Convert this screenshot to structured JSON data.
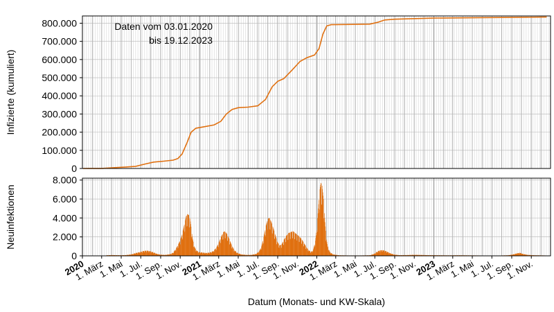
{
  "chart_data": {
    "type": "line",
    "xlabel": "Datum (Monats- und KW-Skala)",
    "annotation": [
      "Daten vom 03.01.2020",
      "bis 19.12.2023"
    ],
    "x_range": [
      "2020-01-01",
      "2023-12-31"
    ],
    "grid": true,
    "x_ticks": [
      {
        "date": "2020-01-01",
        "label": "2020",
        "bold": true
      },
      {
        "date": "2020-03-01",
        "label": "1. März"
      },
      {
        "date": "2020-05-01",
        "label": "1. Mai"
      },
      {
        "date": "2020-07-01",
        "label": "1. Jul."
      },
      {
        "date": "2020-09-01",
        "label": "1. Sep."
      },
      {
        "date": "2020-11-01",
        "label": "1. Nov."
      },
      {
        "date": "2021-01-01",
        "label": "2021",
        "bold": true
      },
      {
        "date": "2021-03-01",
        "label": "1. März"
      },
      {
        "date": "2021-05-01",
        "label": "1. Mai"
      },
      {
        "date": "2021-07-01",
        "label": "1. Jul."
      },
      {
        "date": "2021-09-01",
        "label": "1. Sep."
      },
      {
        "date": "2021-11-01",
        "label": "1. Nov."
      },
      {
        "date": "2022-01-01",
        "label": "2022",
        "bold": true
      },
      {
        "date": "2022-03-01",
        "label": "1. März"
      },
      {
        "date": "2022-05-01",
        "label": "1. Mai"
      },
      {
        "date": "2022-07-01",
        "label": "1. Jul."
      },
      {
        "date": "2022-09-01",
        "label": "1. Sep."
      },
      {
        "date": "2022-11-01",
        "label": "1. Nov."
      },
      {
        "date": "2023-01-01",
        "label": "2023",
        "bold": true
      },
      {
        "date": "2023-03-01",
        "label": "1. März"
      },
      {
        "date": "2023-05-01",
        "label": "1. Mai"
      },
      {
        "date": "2023-07-01",
        "label": "1. Jul."
      },
      {
        "date": "2023-09-01",
        "label": "1. Sep."
      },
      {
        "date": "2023-11-01",
        "label": "1. Nov."
      }
    ],
    "panels": [
      {
        "name": "cumulative",
        "type": "line",
        "ylabel": "Infizierte (kumuliert)",
        "ylim": [
          0,
          840000
        ],
        "yticks": [
          0,
          100000,
          200000,
          300000,
          400000,
          500000,
          600000,
          700000,
          800000
        ],
        "ytick_labels": [
          "0",
          "100.000",
          "200.000",
          "300.000",
          "400.000",
          "500.000",
          "600.000",
          "700.000",
          "800.000"
        ],
        "color": "#E07010",
        "points": [
          {
            "x": "2020-01-03",
            "y": 0
          },
          {
            "x": "2020-03-01",
            "y": 500
          },
          {
            "x": "2020-04-15",
            "y": 5000
          },
          {
            "x": "2020-05-15",
            "y": 8000
          },
          {
            "x": "2020-06-15",
            "y": 12000
          },
          {
            "x": "2020-07-15",
            "y": 25000
          },
          {
            "x": "2020-08-10",
            "y": 35000
          },
          {
            "x": "2020-09-10",
            "y": 40000
          },
          {
            "x": "2020-10-10",
            "y": 46000
          },
          {
            "x": "2020-10-25",
            "y": 55000
          },
          {
            "x": "2020-11-07",
            "y": 80000
          },
          {
            "x": "2020-11-22",
            "y": 140000
          },
          {
            "x": "2020-12-05",
            "y": 200000
          },
          {
            "x": "2020-12-20",
            "y": 222000
          },
          {
            "x": "2021-01-15",
            "y": 230000
          },
          {
            "x": "2021-02-15",
            "y": 240000
          },
          {
            "x": "2021-03-08",
            "y": 260000
          },
          {
            "x": "2021-03-25",
            "y": 300000
          },
          {
            "x": "2021-04-12",
            "y": 325000
          },
          {
            "x": "2021-05-01",
            "y": 335000
          },
          {
            "x": "2021-06-01",
            "y": 338000
          },
          {
            "x": "2021-07-01",
            "y": 345000
          },
          {
            "x": "2021-07-25",
            "y": 380000
          },
          {
            "x": "2021-08-15",
            "y": 450000
          },
          {
            "x": "2021-09-01",
            "y": 480000
          },
          {
            "x": "2021-09-20",
            "y": 495000
          },
          {
            "x": "2021-10-15",
            "y": 540000
          },
          {
            "x": "2021-11-10",
            "y": 590000
          },
          {
            "x": "2021-12-01",
            "y": 610000
          },
          {
            "x": "2021-12-25",
            "y": 625000
          },
          {
            "x": "2022-01-08",
            "y": 660000
          },
          {
            "x": "2022-01-20",
            "y": 740000
          },
          {
            "x": "2022-02-01",
            "y": 785000
          },
          {
            "x": "2022-02-15",
            "y": 792000
          },
          {
            "x": "2022-04-01",
            "y": 793000
          },
          {
            "x": "2022-06-15",
            "y": 795000
          },
          {
            "x": "2022-07-10",
            "y": 805000
          },
          {
            "x": "2022-08-01",
            "y": 818000
          },
          {
            "x": "2022-09-01",
            "y": 822000
          },
          {
            "x": "2023-01-01",
            "y": 828000
          },
          {
            "x": "2023-06-01",
            "y": 831000
          },
          {
            "x": "2023-09-01",
            "y": 832000
          },
          {
            "x": "2023-12-19",
            "y": 834000
          }
        ]
      },
      {
        "name": "daily",
        "type": "bar",
        "ylabel": "Neuinfektionen",
        "ylim": [
          0,
          8200
        ],
        "yticks": [
          0,
          2000,
          4000,
          6000,
          8000
        ],
        "ytick_labels": [
          "0",
          "2.000",
          "4.000",
          "6.000",
          "8.000"
        ],
        "color": "#E07010",
        "bars": [
          {
            "x": "2020-03-15",
            "y": 60
          },
          {
            "x": "2020-04-01",
            "y": 80
          },
          {
            "x": "2020-04-15",
            "y": 70
          },
          {
            "x": "2020-05-01",
            "y": 60
          },
          {
            "x": "2020-05-15",
            "y": 80
          },
          {
            "x": "2020-06-01",
            "y": 150
          },
          {
            "x": "2020-06-15",
            "y": 300
          },
          {
            "x": "2020-07-01",
            "y": 420
          },
          {
            "x": "2020-07-10",
            "y": 520
          },
          {
            "x": "2020-07-20",
            "y": 550
          },
          {
            "x": "2020-07-30",
            "y": 480
          },
          {
            "x": "2020-08-10",
            "y": 350
          },
          {
            "x": "2020-08-20",
            "y": 200
          },
          {
            "x": "2020-09-01",
            "y": 120
          },
          {
            "x": "2020-09-15",
            "y": 100
          },
          {
            "x": "2020-10-01",
            "y": 180
          },
          {
            "x": "2020-10-10",
            "y": 350
          },
          {
            "x": "2020-10-17",
            "y": 700
          },
          {
            "x": "2020-10-24",
            "y": 1100
          },
          {
            "x": "2020-10-31",
            "y": 1600
          },
          {
            "x": "2020-11-05",
            "y": 2100
          },
          {
            "x": "2020-11-10",
            "y": 2800
          },
          {
            "x": "2020-11-15",
            "y": 3600
          },
          {
            "x": "2020-11-19",
            "y": 4200
          },
          {
            "x": "2020-11-23",
            "y": 4400
          },
          {
            "x": "2020-11-27",
            "y": 4300
          },
          {
            "x": "2020-12-01",
            "y": 3900
          },
          {
            "x": "2020-12-05",
            "y": 2800
          },
          {
            "x": "2020-12-09",
            "y": 1800
          },
          {
            "x": "2020-12-14",
            "y": 1000
          },
          {
            "x": "2020-12-20",
            "y": 600
          },
          {
            "x": "2020-12-28",
            "y": 400
          },
          {
            "x": "2021-01-08",
            "y": 350
          },
          {
            "x": "2021-01-20",
            "y": 300
          },
          {
            "x": "2021-02-01",
            "y": 350
          },
          {
            "x": "2021-02-12",
            "y": 500
          },
          {
            "x": "2021-02-22",
            "y": 900
          },
          {
            "x": "2021-03-01",
            "y": 1400
          },
          {
            "x": "2021-03-08",
            "y": 2000
          },
          {
            "x": "2021-03-15",
            "y": 2500
          },
          {
            "x": "2021-03-20",
            "y": 2600
          },
          {
            "x": "2021-03-26",
            "y": 2300
          },
          {
            "x": "2021-04-02",
            "y": 1800
          },
          {
            "x": "2021-04-10",
            "y": 1100
          },
          {
            "x": "2021-04-18",
            "y": 600
          },
          {
            "x": "2021-04-28",
            "y": 300
          },
          {
            "x": "2021-05-10",
            "y": 150
          },
          {
            "x": "2021-05-25",
            "y": 100
          },
          {
            "x": "2021-06-10",
            "y": 100
          },
          {
            "x": "2021-06-25",
            "y": 200
          },
          {
            "x": "2021-07-05",
            "y": 500
          },
          {
            "x": "2021-07-12",
            "y": 1000
          },
          {
            "x": "2021-07-19",
            "y": 2000
          },
          {
            "x": "2021-07-26",
            "y": 3200
          },
          {
            "x": "2021-08-01",
            "y": 3900
          },
          {
            "x": "2021-08-05",
            "y": 4000
          },
          {
            "x": "2021-08-10",
            "y": 3700
          },
          {
            "x": "2021-08-16",
            "y": 3100
          },
          {
            "x": "2021-08-23",
            "y": 2300
          },
          {
            "x": "2021-08-30",
            "y": 1500
          },
          {
            "x": "2021-09-06",
            "y": 1100
          },
          {
            "x": "2021-09-13",
            "y": 1200
          },
          {
            "x": "2021-09-20",
            "y": 1700
          },
          {
            "x": "2021-09-27",
            "y": 2100
          },
          {
            "x": "2021-10-04",
            "y": 2400
          },
          {
            "x": "2021-10-11",
            "y": 2500
          },
          {
            "x": "2021-10-18",
            "y": 2600
          },
          {
            "x": "2021-10-25",
            "y": 2400
          },
          {
            "x": "2021-11-01",
            "y": 2200
          },
          {
            "x": "2021-11-08",
            "y": 2000
          },
          {
            "x": "2021-11-15",
            "y": 1700
          },
          {
            "x": "2021-11-22",
            "y": 1300
          },
          {
            "x": "2021-11-29",
            "y": 900
          },
          {
            "x": "2021-12-06",
            "y": 600
          },
          {
            "x": "2021-12-13",
            "y": 400
          },
          {
            "x": "2021-12-20",
            "y": 600
          },
          {
            "x": "2021-12-27",
            "y": 1600
          },
          {
            "x": "2022-01-01",
            "y": 3000
          },
          {
            "x": "2022-01-05",
            "y": 5000
          },
          {
            "x": "2022-01-09",
            "y": 6800
          },
          {
            "x": "2022-01-13",
            "y": 7700
          },
          {
            "x": "2022-01-17",
            "y": 7400
          },
          {
            "x": "2022-01-21",
            "y": 6000
          },
          {
            "x": "2022-01-25",
            "y": 4000
          },
          {
            "x": "2022-01-29",
            "y": 2200
          },
          {
            "x": "2022-02-03",
            "y": 1000
          },
          {
            "x": "2022-02-10",
            "y": 400
          },
          {
            "x": "2022-02-20",
            "y": 150
          },
          {
            "x": "2022-03-10",
            "y": 60
          },
          {
            "x": "2022-04-10",
            "y": 40
          },
          {
            "x": "2022-05-15",
            "y": 40
          },
          {
            "x": "2022-06-15",
            "y": 60
          },
          {
            "x": "2022-06-28",
            "y": 200
          },
          {
            "x": "2022-07-06",
            "y": 400
          },
          {
            "x": "2022-07-14",
            "y": 550
          },
          {
            "x": "2022-07-22",
            "y": 600
          },
          {
            "x": "2022-07-30",
            "y": 560
          },
          {
            "x": "2022-08-08",
            "y": 430
          },
          {
            "x": "2022-08-18",
            "y": 260
          },
          {
            "x": "2022-08-30",
            "y": 130
          },
          {
            "x": "2022-09-15",
            "y": 70
          },
          {
            "x": "2022-10-10",
            "y": 80
          },
          {
            "x": "2022-11-01",
            "y": 110
          },
          {
            "x": "2022-11-20",
            "y": 90
          },
          {
            "x": "2022-12-15",
            "y": 70
          },
          {
            "x": "2023-01-15",
            "y": 60
          },
          {
            "x": "2023-02-15",
            "y": 50
          },
          {
            "x": "2023-03-20",
            "y": 60
          },
          {
            "x": "2023-04-20",
            "y": 50
          },
          {
            "x": "2023-05-20",
            "y": 40
          },
          {
            "x": "2023-06-20",
            "y": 30
          },
          {
            "x": "2023-07-20",
            "y": 30
          },
          {
            "x": "2023-08-20",
            "y": 60
          },
          {
            "x": "2023-09-05",
            "y": 150
          },
          {
            "x": "2023-09-15",
            "y": 250
          },
          {
            "x": "2023-09-25",
            "y": 320
          },
          {
            "x": "2023-10-05",
            "y": 200
          },
          {
            "x": "2023-10-20",
            "y": 100
          },
          {
            "x": "2023-11-10",
            "y": 60
          },
          {
            "x": "2023-12-01",
            "y": 50
          },
          {
            "x": "2023-12-15",
            "y": 40
          }
        ]
      }
    ]
  }
}
